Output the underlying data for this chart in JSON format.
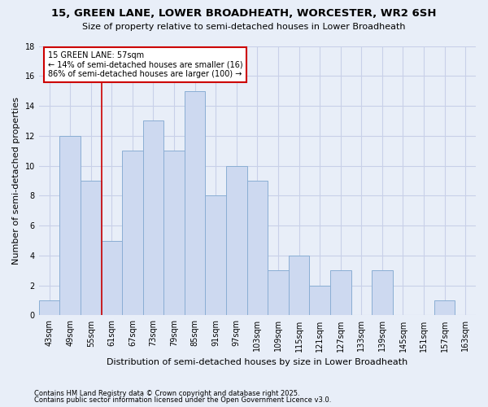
{
  "title": "15, GREEN LANE, LOWER BROADHEATH, WORCESTER, WR2 6SH",
  "subtitle": "Size of property relative to semi-detached houses in Lower Broadheath",
  "xlabel": "Distribution of semi-detached houses by size in Lower Broadheath",
  "ylabel": "Number of semi-detached properties",
  "categories": [
    "43sqm",
    "49sqm",
    "55sqm",
    "61sqm",
    "67sqm",
    "73sqm",
    "79sqm",
    "85sqm",
    "91sqm",
    "97sqm",
    "103sqm",
    "109sqm",
    "115sqm",
    "121sqm",
    "127sqm",
    "133sqm",
    "139sqm",
    "145sqm",
    "151sqm",
    "157sqm",
    "163sqm"
  ],
  "values": [
    1,
    12,
    9,
    5,
    11,
    13,
    11,
    15,
    8,
    10,
    9,
    3,
    4,
    2,
    3,
    0,
    3,
    0,
    0,
    1,
    0
  ],
  "bar_color": "#cdd9f0",
  "bar_edge_color": "#8aaed4",
  "vline_x": 2.5,
  "vline_color": "#cc0000",
  "annotation_title": "15 GREEN LANE: 57sqm",
  "annotation_line1": "← 14% of semi-detached houses are smaller (16)",
  "annotation_line2": "86% of semi-detached houses are larger (100) →",
  "annotation_box_facecolor": "#ffffff",
  "annotation_box_edgecolor": "#cc0000",
  "ylim": [
    0,
    18
  ],
  "yticks": [
    0,
    2,
    4,
    6,
    8,
    10,
    12,
    14,
    16,
    18
  ],
  "grid_color": "#c8d0e8",
  "bg_color": "#e8eef8",
  "title_fontsize": 9.5,
  "subtitle_fontsize": 8,
  "ylabel_fontsize": 8,
  "xlabel_fontsize": 8,
  "tick_fontsize": 7,
  "footnote1": "Contains HM Land Registry data © Crown copyright and database right 2025.",
  "footnote2": "Contains public sector information licensed under the Open Government Licence v3.0."
}
